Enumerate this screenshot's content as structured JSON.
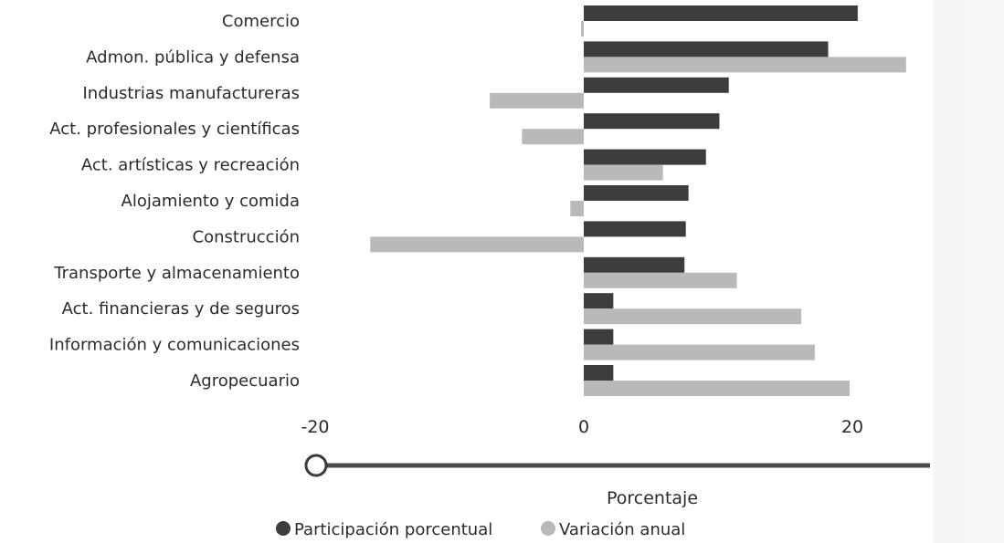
{
  "chart_data": {
    "type": "bar",
    "orientation": "horizontal",
    "categories": [
      "Comercio",
      "Admon. pública y defensa",
      "Industrias manufactureras",
      "Act. profesionales y científicas",
      "Act. artísticas y recreación",
      "Alojamiento y comida",
      "Construcción",
      "Transporte y almacenamiento",
      "Act. financieras y de seguros",
      "Información y comunicaciones",
      "Agropecuario"
    ],
    "series": [
      {
        "name": "Participación porcentual",
        "color": "#3d3d3d",
        "values": [
          20.4,
          18.2,
          10.8,
          10.1,
          9.1,
          7.8,
          7.6,
          7.5,
          2.2,
          2.2,
          2.2
        ]
      },
      {
        "name": "Variación anual",
        "color": "#b9b9b9",
        "values": [
          -0.2,
          24.0,
          -7.0,
          -4.6,
          5.9,
          -1.0,
          -15.9,
          11.4,
          16.2,
          17.2,
          19.8
        ]
      }
    ],
    "xticks": [
      "-20",
      "0",
      "20"
    ],
    "xlim": [
      -20,
      30
    ],
    "xlabel": "Porcentaje",
    "legend_position": "bottom",
    "grid": false
  }
}
